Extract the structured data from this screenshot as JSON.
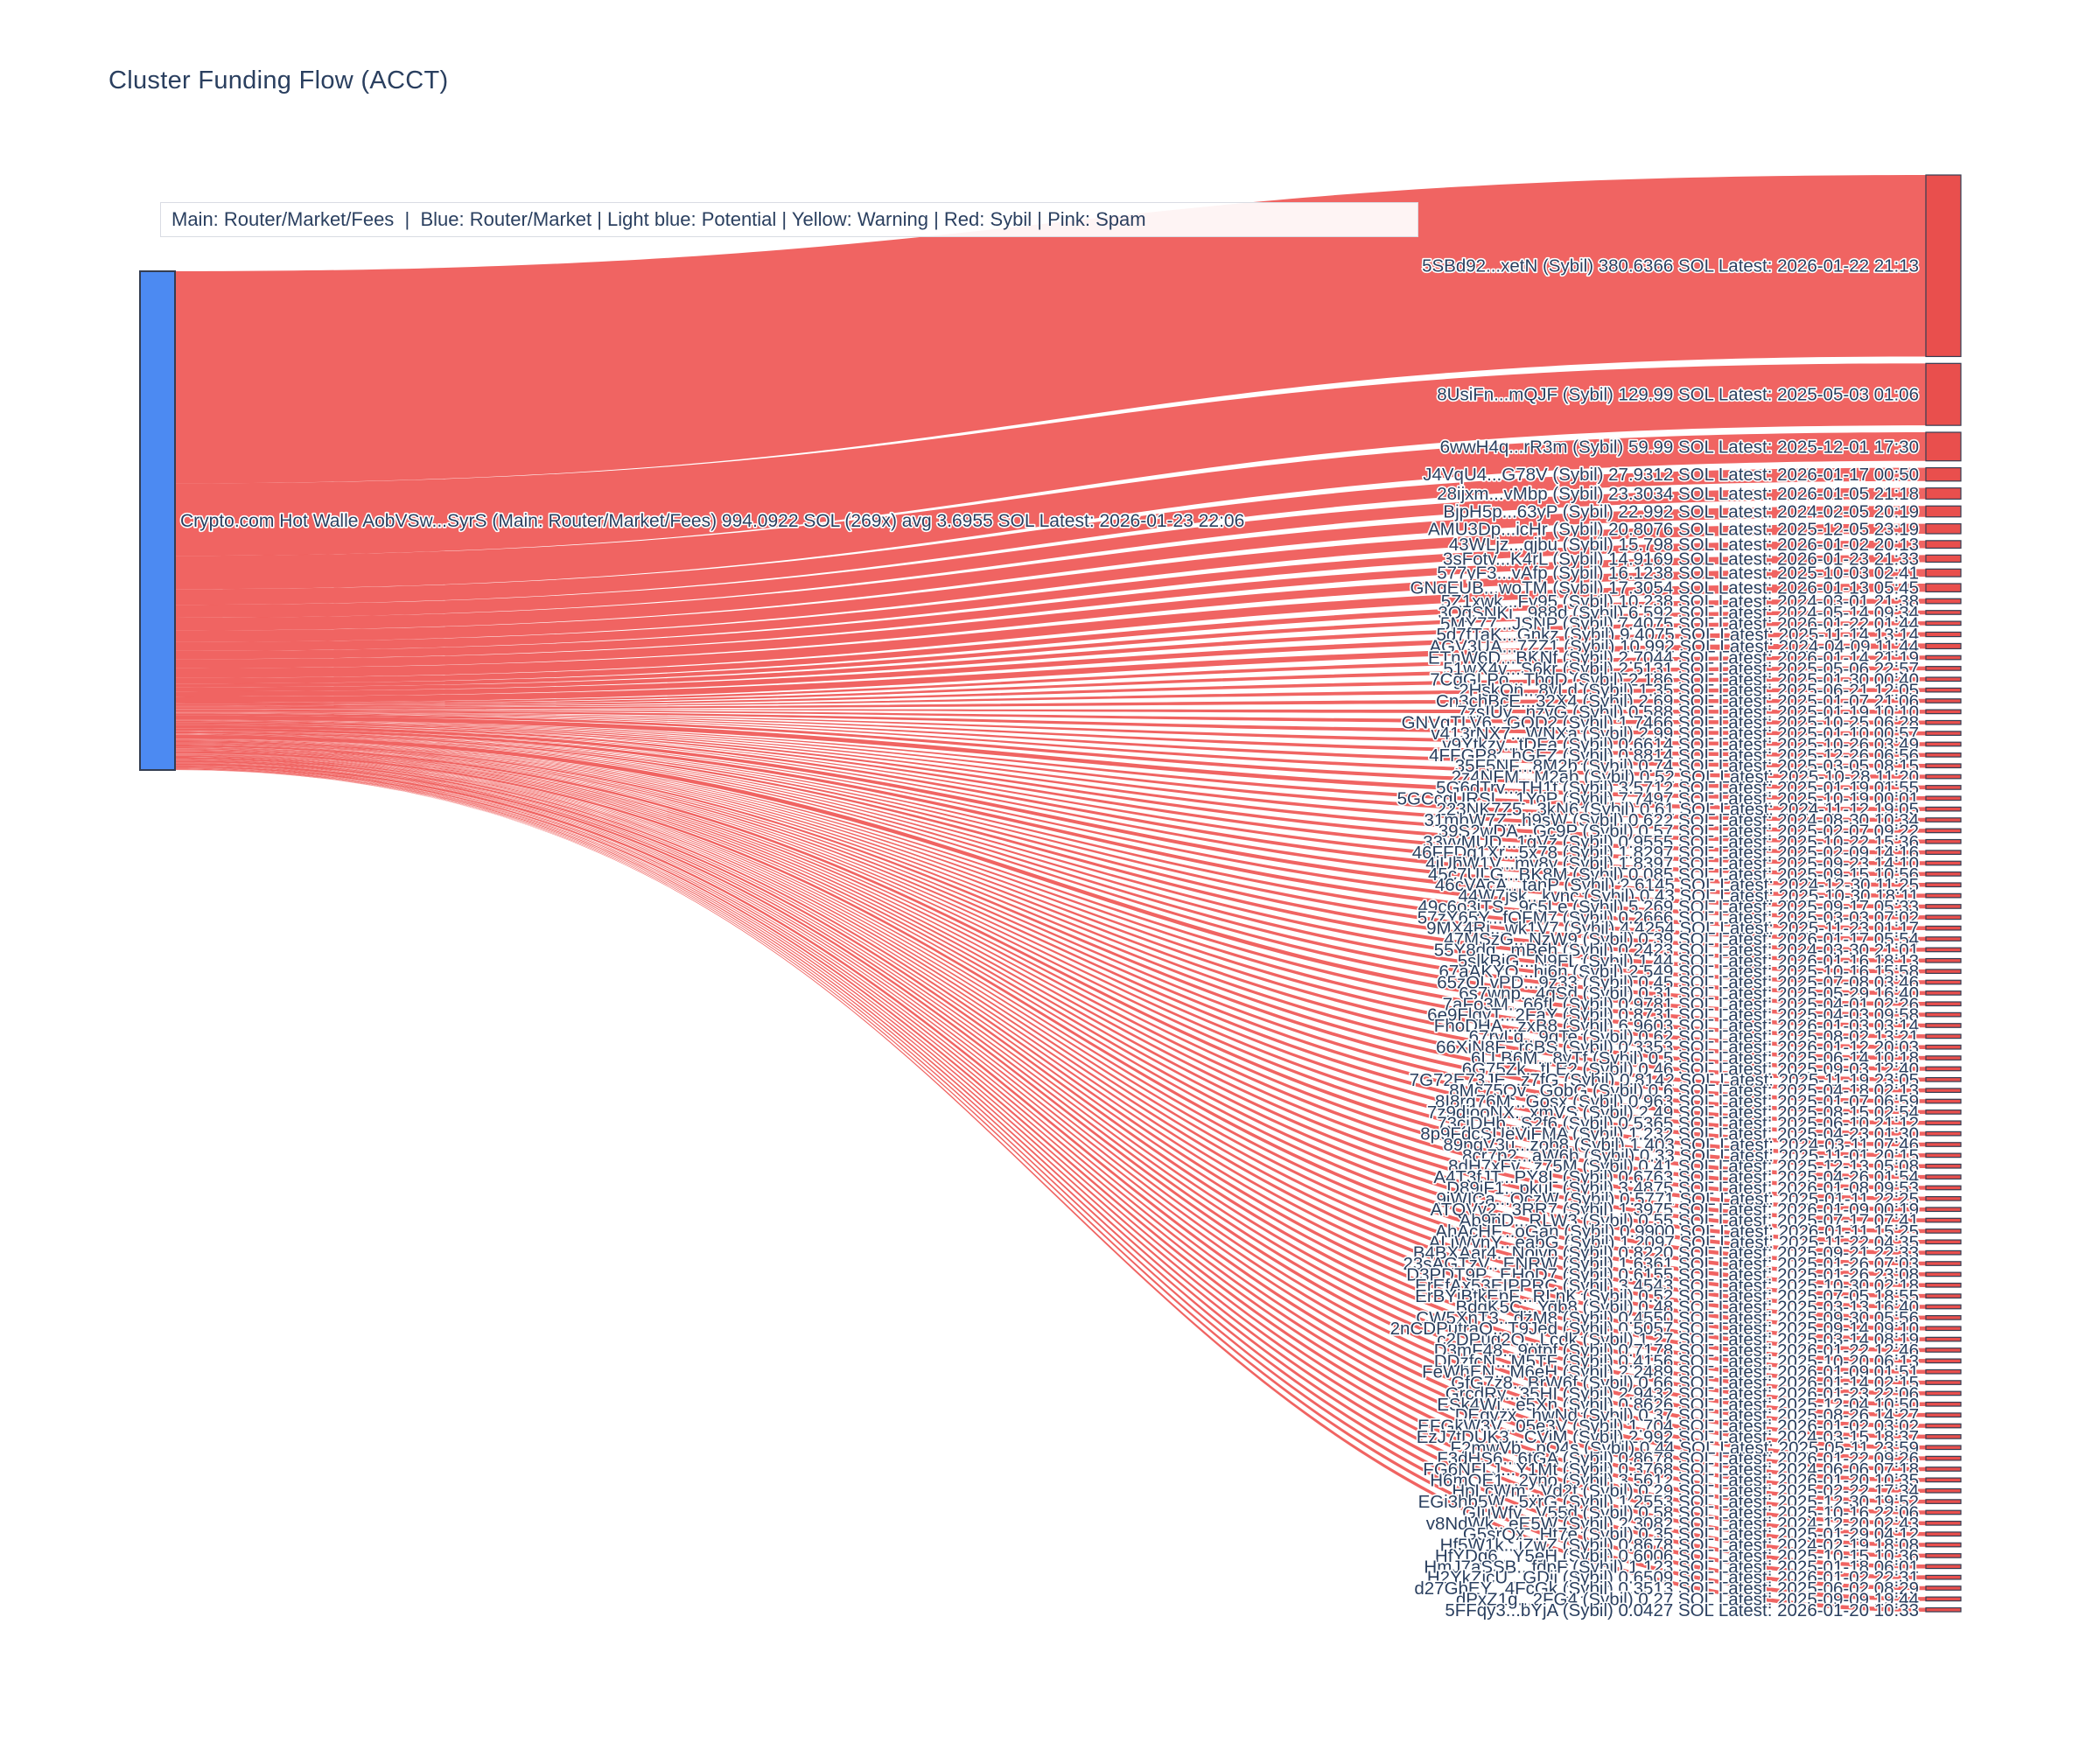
{
  "title": "Cluster Funding Flow (ACCT)",
  "legend_note": "Main: Router/Market/Fees  |  Blue: Router/Market | Light blue: Potential | Yellow: Warning | Red: Sybil | Pink: Spam",
  "colors": {
    "main_node_blue": "#4c8af2",
    "sybil_flow_red": "#ee5351",
    "sybil_node_red": "#e94f4d",
    "node_border": "#343d52",
    "label_text": "#2a3f5f",
    "title_text": "#2a3f5f",
    "legend_border": "#d9dce3",
    "background": "#ffffff"
  },
  "chart_data": {
    "type": "sankey",
    "source": {
      "name": "Crypto.com Hot Walle AobVSw...SyrS",
      "category": "Main: Router/Market/Fees",
      "total_sol": 994.0922,
      "tx_count": 269,
      "avg_sol": 3.6955,
      "latest": "2026-01-23 22:06",
      "label": "Crypto.com Hot Walle AobVSw...SyrS (Main: Router/Market/Fees) 994.0922 SOL (269x) avg 3.6955 SOL Latest: 2026-01-23 22:06"
    },
    "target_tag": "(Sybil)",
    "targets": [
      {
        "addr": "5SBd92...xetN",
        "sol": "380.6366",
        "latest": "2026-01-22 21:13"
      },
      {
        "addr": "8UsiFn...mQJF",
        "sol": "129.99",
        "latest": "2025-05-03 01:06"
      },
      {
        "addr": "6wwH4q...rR3m",
        "sol": "59.99",
        "latest": "2025-12-01 17:30"
      },
      {
        "addr": "J4VqU4...G78V",
        "sol": "27.9312",
        "latest": "2026-01-17 00:50"
      },
      {
        "addr": "28ijxm...vMbp",
        "sol": "23.3034",
        "latest": "2026-01-05 21:18"
      },
      {
        "addr": "BjpH5p...63yP",
        "sol": "22.992",
        "latest": "2024-02-05 20:19"
      },
      {
        "addr": "AMU3Dp...icHr",
        "sol": "20.8076",
        "latest": "2025-12-05 23:19"
      },
      {
        "addr": "43WLjz...qjbu",
        "sol": "15.798",
        "latest": "2026-01-02 20:13"
      },
      {
        "addr": "3sFotv...K4rL",
        "sol": "14.9169",
        "latest": "2026-01-23 21:33"
      },
      {
        "addr": "577yF3...vAfp",
        "sol": "16.1238",
        "latest": "2025-10-03 02:41"
      },
      {
        "addr": "GNqEUB...woTM",
        "sol": "17.3054",
        "latest": "2026-01-13 05:45"
      },
      {
        "addr": "5Z1xwk...Fv95",
        "sol": "10.238",
        "latest": "2024-03-01 21:38"
      },
      {
        "addr": "3OgSNKi...988d",
        "sol": "6.592",
        "latest": "2024-05-14 09:34"
      },
      {
        "addr": "5MY77...JSNP",
        "sol": "7.4075",
        "latest": "2026-01-22 01:44"
      },
      {
        "addr": "5d7fTaK...Gnkz",
        "sol": "9.4075",
        "latest": "2025-11-14 13:14"
      },
      {
        "addr": "AGV3UA...7ZZ1",
        "sol": "10.992",
        "latest": "2024-04-09 11:44"
      },
      {
        "addr": "ETnW6D...BKNf",
        "sol": "2.7044",
        "latest": "2026-01-14 21:19"
      },
      {
        "addr": "51wX4v...S6kr",
        "sol": "2.5131",
        "latest": "2025-05-06 22:57"
      },
      {
        "addr": "7CgGLPo...TbqD",
        "sol": "2.186",
        "latest": "2025-01-30 00:40"
      },
      {
        "addr": "2HskQn...8vLd",
        "sol": "1.35",
        "latest": "2025-06-21 12:05"
      },
      {
        "addr": "Cn3chBcE...32X4",
        "sol": "2.69",
        "latest": "2025-01-07 21:06"
      },
      {
        "addr": "7zsIUy...nzvG",
        "sol": "0.588",
        "latest": "2025-01-19 10:10"
      },
      {
        "addr": "GNVgTLV6...GQD2",
        "sol": "1.7466",
        "latest": "2025-10-25 06:28"
      },
      {
        "addr": "v413rNX7...WNXa",
        "sol": "2.99",
        "latest": "2025-01-10 00:57"
      },
      {
        "addr": "v9Ytkzy...tDFa",
        "sol": "0.6614",
        "latest": "2025-10-26 03:49"
      },
      {
        "addr": "4FFGP8...hGFZ",
        "sol": "0.8814",
        "latest": "2025-12-26 06:56"
      },
      {
        "addr": "35F5NF...8M2b",
        "sol": "0.74",
        "latest": "2025-03-05 08:15"
      },
      {
        "addr": "2z4NFM...M2ab",
        "sol": "0.52",
        "latest": "2025-10-28 11:20"
      },
      {
        "addr": "5G6dTrv...TH1t",
        "sol": "3.5712",
        "latest": "2025-01-19 01:55"
      },
      {
        "addr": "5GCcqURSL...1YoP",
        "sol": "7.7497",
        "latest": "2025-10-19 00:01"
      },
      {
        "addr": "223NK7Z5...3kN6",
        "sol": "0.61",
        "latest": "2024-11-12 19:05"
      },
      {
        "addr": "31mbW7Z...h9sW",
        "sol": "0.622",
        "latest": "2024-08-30 10:34"
      },
      {
        "addr": "39S2wDA...Gc9P",
        "sol": "0.57",
        "latest": "2025-02-07 09:22"
      },
      {
        "addr": "33vvMUD...1gVz",
        "sol": "0.9555",
        "latest": "2025-10-22 15:36"
      },
      {
        "addr": "46FFDg1Xr...5x78",
        "sol": "1.8297",
        "latest": "2025-02-09 14:16"
      },
      {
        "addr": "4iUbW1V...mv8y",
        "sol": "1.8397",
        "latest": "2025-09-23 14:10"
      },
      {
        "addr": "45c7ULG...BK8M",
        "sol": "0.085",
        "latest": "2025-09-15 10:56"
      },
      {
        "addr": "46cVAcA...tanP",
        "sol": "2.6145",
        "latest": "2024-12-30 11:25"
      },
      {
        "addr": "44W7jsk...kvnc",
        "sol": "0.43",
        "latest": "2025-10-30 18:11"
      },
      {
        "addr": "49c6o3jTS...9c5Le",
        "sol": "5.269",
        "latest": "2025-09-17 05:33"
      },
      {
        "addr": "57zY65Y...fQFM7",
        "sol": "0.2666",
        "latest": "2025-03-03 07:02"
      },
      {
        "addr": "9MX4Ri...wk1V7",
        "sol": "4.4254",
        "latest": "2025-11-23 01:17"
      },
      {
        "addr": "47MSzG...NzW9",
        "sol": "0.39",
        "latest": "2026-01-17 05:54"
      },
      {
        "addr": "55Y8dq...mBeh",
        "sol": "0.2423",
        "latest": "2024-03-30 21:01"
      },
      {
        "addr": "5slkBjG...N9FL",
        "sol": "1.44",
        "latest": "2026-01-16 18:13"
      },
      {
        "addr": "67aAKYQ...hj6n",
        "sol": "2.549",
        "latest": "2025-10-16 15:58"
      },
      {
        "addr": "65zQLvPD...9z33",
        "sol": "0.45",
        "latest": "2025-07-08 03:46"
      },
      {
        "addr": "6s7wnp...4gSd",
        "sol": "0.31",
        "latest": "2025-05-29 16:40"
      },
      {
        "addr": "7aFo3M...66fL",
        "sol": "0.9781",
        "latest": "2025-04-01 02:26"
      },
      {
        "addr": "6e9FlqyT...2FaY",
        "sol": "0.8731",
        "latest": "2025-04-03 09:58"
      },
      {
        "addr": "FhoDHA...zxB8",
        "sol": "6.9603",
        "latest": "2026-01-03 03:14"
      },
      {
        "addr": "67rvLq...9qTe",
        "sol": "0.62",
        "latest": "2025-08-02 13:21"
      },
      {
        "addr": "66XiN8F...rcBS",
        "sol": "0.3353",
        "latest": "2026-01-12 20:03"
      },
      {
        "addr": "6LLB6M...8yTf",
        "sol": "0.5",
        "latest": "2025-06-14 10:18"
      },
      {
        "addr": "6G75Zk...tLE2",
        "sol": "0.46",
        "latest": "2025-09-03 12:40"
      },
      {
        "addr": "7G72E73JE...z7fG",
        "sol": "0.8142",
        "latest": "2025-11-19 23:05"
      },
      {
        "addr": "8Mc75Qv...GobG",
        "sol": "0.6",
        "latest": "2025-04-18 02:13"
      },
      {
        "addr": "8I8rg76M...Gosx",
        "sol": "0.963",
        "latest": "2025-01-07 06:59"
      },
      {
        "addr": "7z9diooNX...xmVS",
        "sol": "2.49",
        "latest": "2025-08-15 02:54"
      },
      {
        "addr": "73cjDHb...S2f6",
        "sol": "0.5365",
        "latest": "2025-06-10 21:12"
      },
      {
        "addr": "8p9FdcSUeViFMA",
        "sol": "1.232",
        "latest": "2025-04-23 01:30"
      },
      {
        "addr": "89pgV3u...zob8",
        "sol": "1.403",
        "latest": "2024-03-11 07:46"
      },
      {
        "addr": "8cr7p2...aW6b",
        "sol": "0.33",
        "latest": "2025-11-01 20:15"
      },
      {
        "addr": "8dH7xFv...z75M",
        "sol": "0.41",
        "latest": "2025-12-13 05:08"
      },
      {
        "addr": "A4T3fJT...PY8L",
        "sol": "0.6763",
        "latest": "2025-04-26 01:54"
      },
      {
        "addr": "D89jF1...pkuL",
        "sol": "3.4875",
        "latest": "2026-01-08 09:53"
      },
      {
        "addr": "9jWICa...OczW",
        "sol": "0.5771",
        "latest": "2025-01-11 22:25"
      },
      {
        "addr": "ATQVv2...3RR7",
        "sol": "1.3975",
        "latest": "2026-01-09 00:19"
      },
      {
        "addr": "Ab9nD...RLW3",
        "sol": "0.55",
        "latest": "2025-07-17 07:41"
      },
      {
        "addr": "AhAcHF...oGan",
        "sol": "0.9900",
        "latest": "2026-01-11 15:25"
      },
      {
        "addr": "ALjWvnY...eabG",
        "sol": "1.2097",
        "latest": "2025-11-22 04:35"
      },
      {
        "addr": "B4BXAar4...Noivp",
        "sol": "0.8220",
        "latest": "2025-09-21 22:33"
      },
      {
        "addr": "23sAGTzV...ENRW",
        "sol": "1.6361",
        "latest": "2025-01-26 07:03"
      },
      {
        "addr": "D3PDT9P...EHoD7",
        "sol": "0.6155",
        "latest": "2025-01-26 23:08"
      },
      {
        "addr": "ErEfAx53EIPPRC",
        "sol": "3.4543",
        "latest": "2025-10-30 02:18"
      },
      {
        "addr": "ErBYjBtkEpF...RLnK",
        "sol": "0.52",
        "latest": "2025-07-05 18:55"
      },
      {
        "addr": "BdqK5C...Yqb8",
        "sol": "0.48",
        "latest": "2025-03-13 16:40"
      },
      {
        "addr": "CW5XnT3...dzM8",
        "sol": "0.4550",
        "latest": "2025-09-30 05:56"
      },
      {
        "addr": "2nCDPutraQ...T9Jed",
        "sol": "0.5057",
        "latest": "2025-09-14 09:10"
      },
      {
        "addr": "c2DPuq2Q...Lcdk",
        "sol": "1.27",
        "latest": "2025-03-14 08:19"
      },
      {
        "addr": "D3mF48...9otpf",
        "sol": "0.7178",
        "latest": "2026-01-22 12:46"
      },
      {
        "addr": "DDzfcN...M5TF",
        "sol": "0.4156",
        "latest": "2025-10-20 06:13"
      },
      {
        "addr": "FeWhEN...M6eH",
        "sol": "2.2489",
        "latest": "2026-01-09 01:51"
      },
      {
        "addr": "GfG7z8...BrW6f",
        "sol": "0.66",
        "latest": "2026-01-14 02:15"
      },
      {
        "addr": "GrcdRy...35HI",
        "sol": "2.9432",
        "latest": "2026-01-23 22:06"
      },
      {
        "addr": "ESk4Wj...e5Xn",
        "sol": "0.8626",
        "latest": "2025-12-04 10:50"
      },
      {
        "addr": "DEqvzx...hwNd",
        "sol": "0.37",
        "latest": "2025-08-26 14:27"
      },
      {
        "addr": "EFGkW3V...05e3V",
        "sol": "1.704",
        "latest": "2026-01-02 03:02"
      },
      {
        "addr": "EzJ7tDUK3...CViM",
        "sol": "2.992",
        "latest": "2024-03-15 18:37"
      },
      {
        "addr": "F2mwVb...pQ4s",
        "sol": "0.44",
        "latest": "2025-05-11 23:59"
      },
      {
        "addr": "F3dHS6...6tGA",
        "sol": "0.8678",
        "latest": "2026-01-22 09:26"
      },
      {
        "addr": "FG6NFLJ...Y1Mt",
        "sol": "0.3768",
        "latest": "2024-06-06 07:18"
      },
      {
        "addr": "H6mQE1...2yno",
        "sol": "3.5612",
        "latest": "2026-01-20 10:35"
      },
      {
        "addr": "HpLcWm...Vd2t",
        "sol": "0.29",
        "latest": "2025-02-22 17:34"
      },
      {
        "addr": "EGi3hb5W...5xrG",
        "sol": "1.2553",
        "latest": "2025-12-30 19:52"
      },
      {
        "addr": "GIuWfv...V55d",
        "sol": "0.58",
        "latest": "2025-10-16 22:06"
      },
      {
        "addr": "v8NdWk...eE5W",
        "sol": "2.3082",
        "latest": "2024-12-20 02:43"
      },
      {
        "addr": "G5srQx...Ht7e",
        "sol": "0.35",
        "latest": "2025-01-29 04:12"
      },
      {
        "addr": "Hf5W1k...iZwZ",
        "sol": "0.8678",
        "latest": "2024-02-19 18:08"
      },
      {
        "addr": "HfYDg6...Y5eH",
        "sol": "0.6006",
        "latest": "2025-10-15 10:36"
      },
      {
        "addr": "HmJ7aSSB...fdpF",
        "sol": "1.123",
        "latest": "2025-01-18 06:01"
      },
      {
        "addr": "H2YkZjcU...GDij",
        "sol": "0.6509",
        "latest": "2026-01-02 22:31"
      },
      {
        "addr": "d27GbEY...4FcGk",
        "sol": "0.3513",
        "latest": "2025-06-02 08:29"
      },
      {
        "addr": "dPxZ1g...2FG4",
        "sol": "0.27",
        "latest": "2025-09-09 19:44"
      },
      {
        "addr": "5FFqy3...bYjA",
        "sol": "0.0427",
        "latest": "2026-01-20 10:33"
      }
    ]
  }
}
